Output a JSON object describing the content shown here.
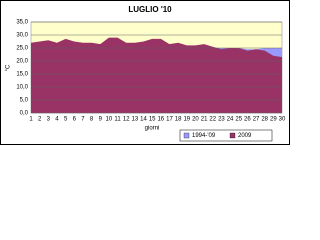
{
  "chart_data": {
    "type": "area",
    "title": "LUGLIO '10",
    "y_label": "°C",
    "x_label": "giorni",
    "categories": [
      "1",
      "2",
      "3",
      "4",
      "5",
      "6",
      "7",
      "8",
      "9",
      "10",
      "11",
      "12",
      "13",
      "14",
      "15",
      "16",
      "17",
      "18",
      "19",
      "20",
      "21",
      "22",
      "23",
      "24",
      "25",
      "26",
      "27",
      "28",
      "29",
      "30"
    ],
    "series": [
      {
        "name": "1994-'09",
        "color": "#9999ff",
        "values": [
          25,
          25,
          25,
          25,
          25,
          25,
          25,
          25,
          25,
          25,
          25,
          25,
          25,
          25,
          25,
          25,
          25,
          25,
          25,
          25,
          25,
          25,
          25,
          25,
          25,
          24.5,
          24.5,
          25,
          25,
          25
        ]
      },
      {
        "name": "2009",
        "color": "#993366",
        "values": [
          27,
          27.5,
          28,
          27,
          28.5,
          27.5,
          27,
          27,
          26.5,
          29,
          29,
          27,
          27,
          27.5,
          28.5,
          28.5,
          26.5,
          27,
          26,
          26,
          26.5,
          25.5,
          24.5,
          25,
          25,
          24,
          24.5,
          24,
          22,
          21.5
        ]
      }
    ],
    "ylim": [
      0,
      35
    ],
    "yticks": [
      {
        "value": 0,
        "label": "0,0"
      },
      {
        "value": 5,
        "label": "5,0"
      },
      {
        "value": 10,
        "label": "10,0"
      },
      {
        "value": 15,
        "label": "15,0"
      },
      {
        "value": 20,
        "label": "20,0"
      },
      {
        "value": 25,
        "label": "25,0"
      },
      {
        "value": 30,
        "label": "30,0"
      },
      {
        "value": 35,
        "label": "35,0"
      }
    ],
    "grid": true,
    "legend": "bottom-right",
    "plot_background": "#ffffcc"
  }
}
